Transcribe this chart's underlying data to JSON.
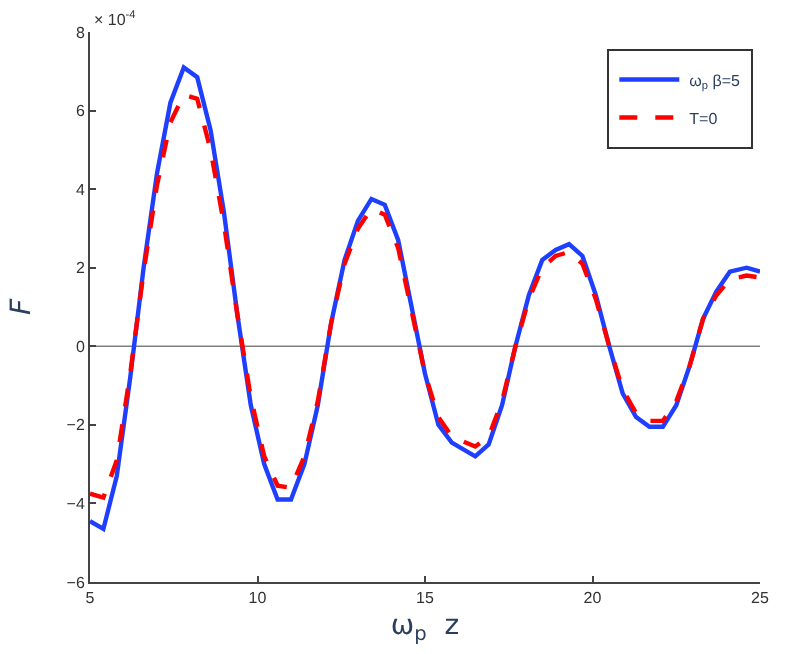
{
  "chart_data": {
    "type": "line",
    "xlabel": "ω$_{p}$  z",
    "ylabel": "F",
    "annotations": [
      "× 10$^{-4}$"
    ],
    "x": [
      5.0,
      5.4,
      5.8,
      6.2,
      6.6,
      7.0,
      7.4,
      7.8,
      8.2,
      8.6,
      9.0,
      9.4,
      9.8,
      10.2,
      10.6,
      11.0,
      11.4,
      11.8,
      12.2,
      12.6,
      13.0,
      13.4,
      13.8,
      14.2,
      14.6,
      15.0,
      15.4,
      15.8,
      16.5,
      16.9,
      17.3,
      17.7,
      18.1,
      18.5,
      18.9,
      19.3,
      19.7,
      20.1,
      20.5,
      20.9,
      21.3,
      21.7,
      22.1,
      22.5,
      22.9,
      23.3,
      23.7,
      24.1,
      24.6,
      25.0
    ],
    "series": [
      {
        "name": "ω$_{p}$ β=5",
        "color": "#1f3fff",
        "line_style": "solid",
        "values": [
          -4.45,
          -4.65,
          -3.3,
          -0.8,
          2.0,
          4.4,
          6.2,
          7.1,
          6.85,
          5.5,
          3.4,
          0.8,
          -1.5,
          -3.0,
          -3.9,
          -3.9,
          -3.0,
          -1.5,
          0.6,
          2.2,
          3.2,
          3.75,
          3.6,
          2.7,
          1.0,
          -0.7,
          -2.0,
          -2.45,
          -2.8,
          -2.5,
          -1.5,
          0.0,
          1.3,
          2.2,
          2.45,
          2.6,
          2.3,
          1.3,
          0.0,
          -1.2,
          -1.8,
          -2.05,
          -2.05,
          -1.5,
          -0.5,
          0.7,
          1.4,
          1.9,
          2.0,
          1.9
        ]
      },
      {
        "name": "T=0",
        "color": "#ff0000",
        "line_style": "dashed",
        "values": [
          -3.75,
          -3.85,
          -2.9,
          -0.7,
          1.9,
          4.1,
          5.7,
          6.4,
          6.3,
          5.0,
          3.1,
          0.8,
          -1.3,
          -2.8,
          -3.55,
          -3.6,
          -2.8,
          -1.4,
          0.6,
          2.1,
          3.0,
          3.5,
          3.35,
          2.5,
          0.9,
          -0.7,
          -1.8,
          -2.3,
          -2.55,
          -2.3,
          -1.4,
          0.0,
          1.2,
          2.0,
          2.3,
          2.4,
          2.1,
          1.2,
          0.0,
          -1.1,
          -1.7,
          -1.9,
          -1.9,
          -1.4,
          -0.5,
          0.7,
          1.3,
          1.7,
          1.8,
          1.75
        ]
      }
    ],
    "xlim": [
      5,
      25
    ],
    "xticks": [
      5,
      10,
      15,
      20,
      25
    ],
    "ylim": [
      -6,
      8
    ],
    "yticks": [
      -6,
      -4,
      -2,
      0,
      2,
      4,
      6,
      8
    ],
    "ref_lines": [
      {
        "axis": "y",
        "value": 0,
        "color": "#7f7f7f"
      }
    ],
    "grid": false,
    "legend": "top right",
    "marker": "none"
  }
}
